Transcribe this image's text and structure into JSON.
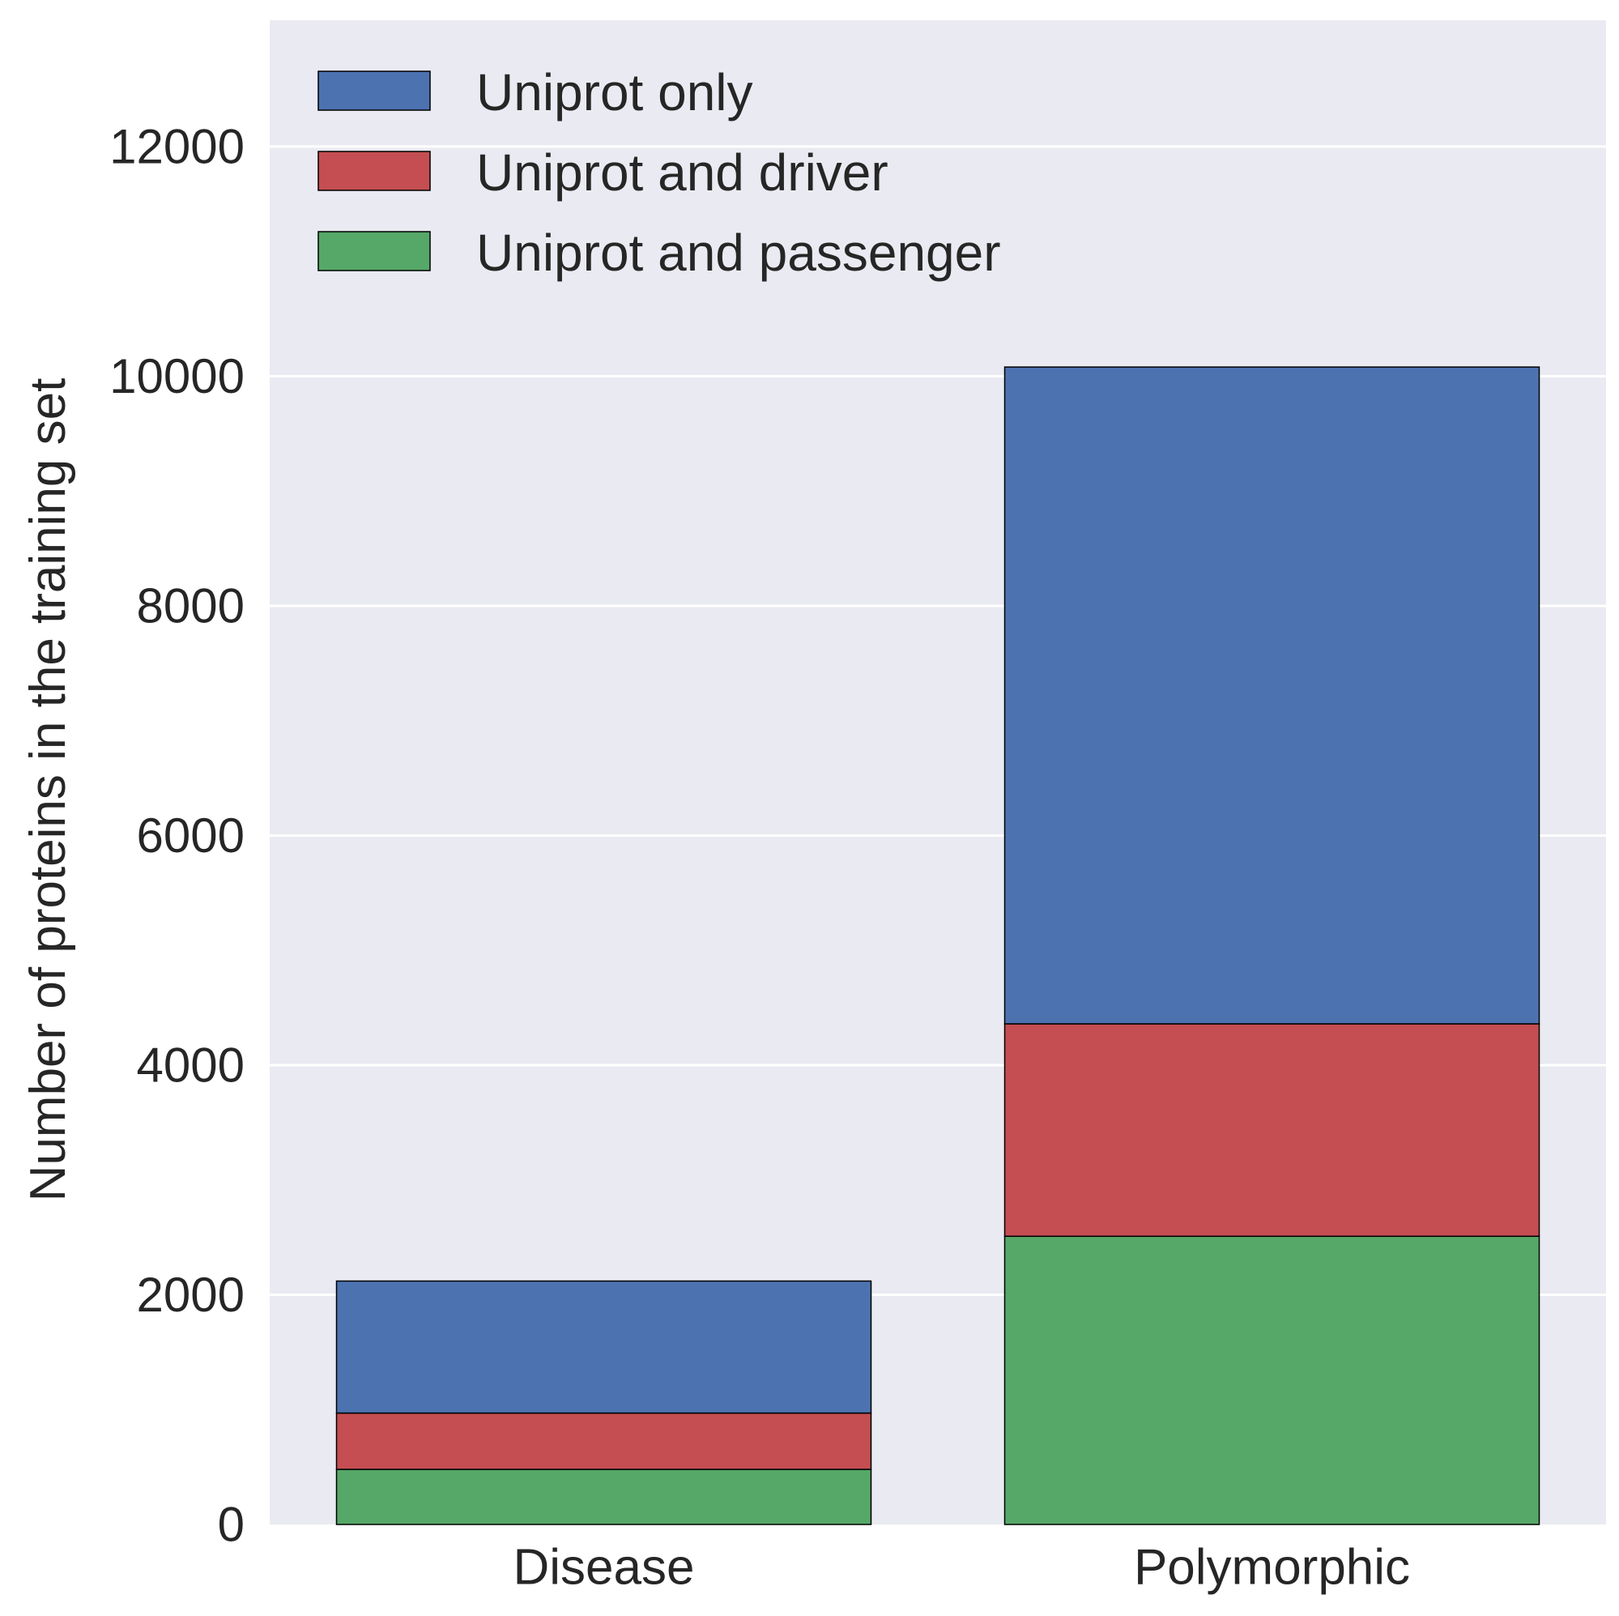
{
  "chart_data": {
    "type": "bar",
    "stacked": true,
    "title": "",
    "xlabel": "",
    "ylabel": "Number of proteins in the training set",
    "categories": [
      "Disease",
      "Polymorphic"
    ],
    "series": [
      {
        "name": "Uniprot and passenger",
        "color": "#55a868",
        "values": [
          480,
          2510
        ]
      },
      {
        "name": "Uniprot and driver",
        "color": "#c44e52",
        "values": [
          490,
          1850
        ]
      },
      {
        "name": "Uniprot only",
        "color": "#4c72b0",
        "values": [
          1150,
          5720
        ]
      }
    ],
    "legend_order": [
      "Uniprot only",
      "Uniprot and driver",
      "Uniprot and passenger"
    ],
    "yticks": [
      0,
      2000,
      4000,
      6000,
      8000,
      10000,
      12000
    ],
    "ytick_labels": [
      "0",
      "2000",
      "4000",
      "6000",
      "8000",
      "10000",
      "12000"
    ],
    "ylim": [
      0,
      13100
    ],
    "grid": true,
    "legend_position": "top-left",
    "background": "#eaeaf2",
    "grid_color": "#ffffff"
  }
}
